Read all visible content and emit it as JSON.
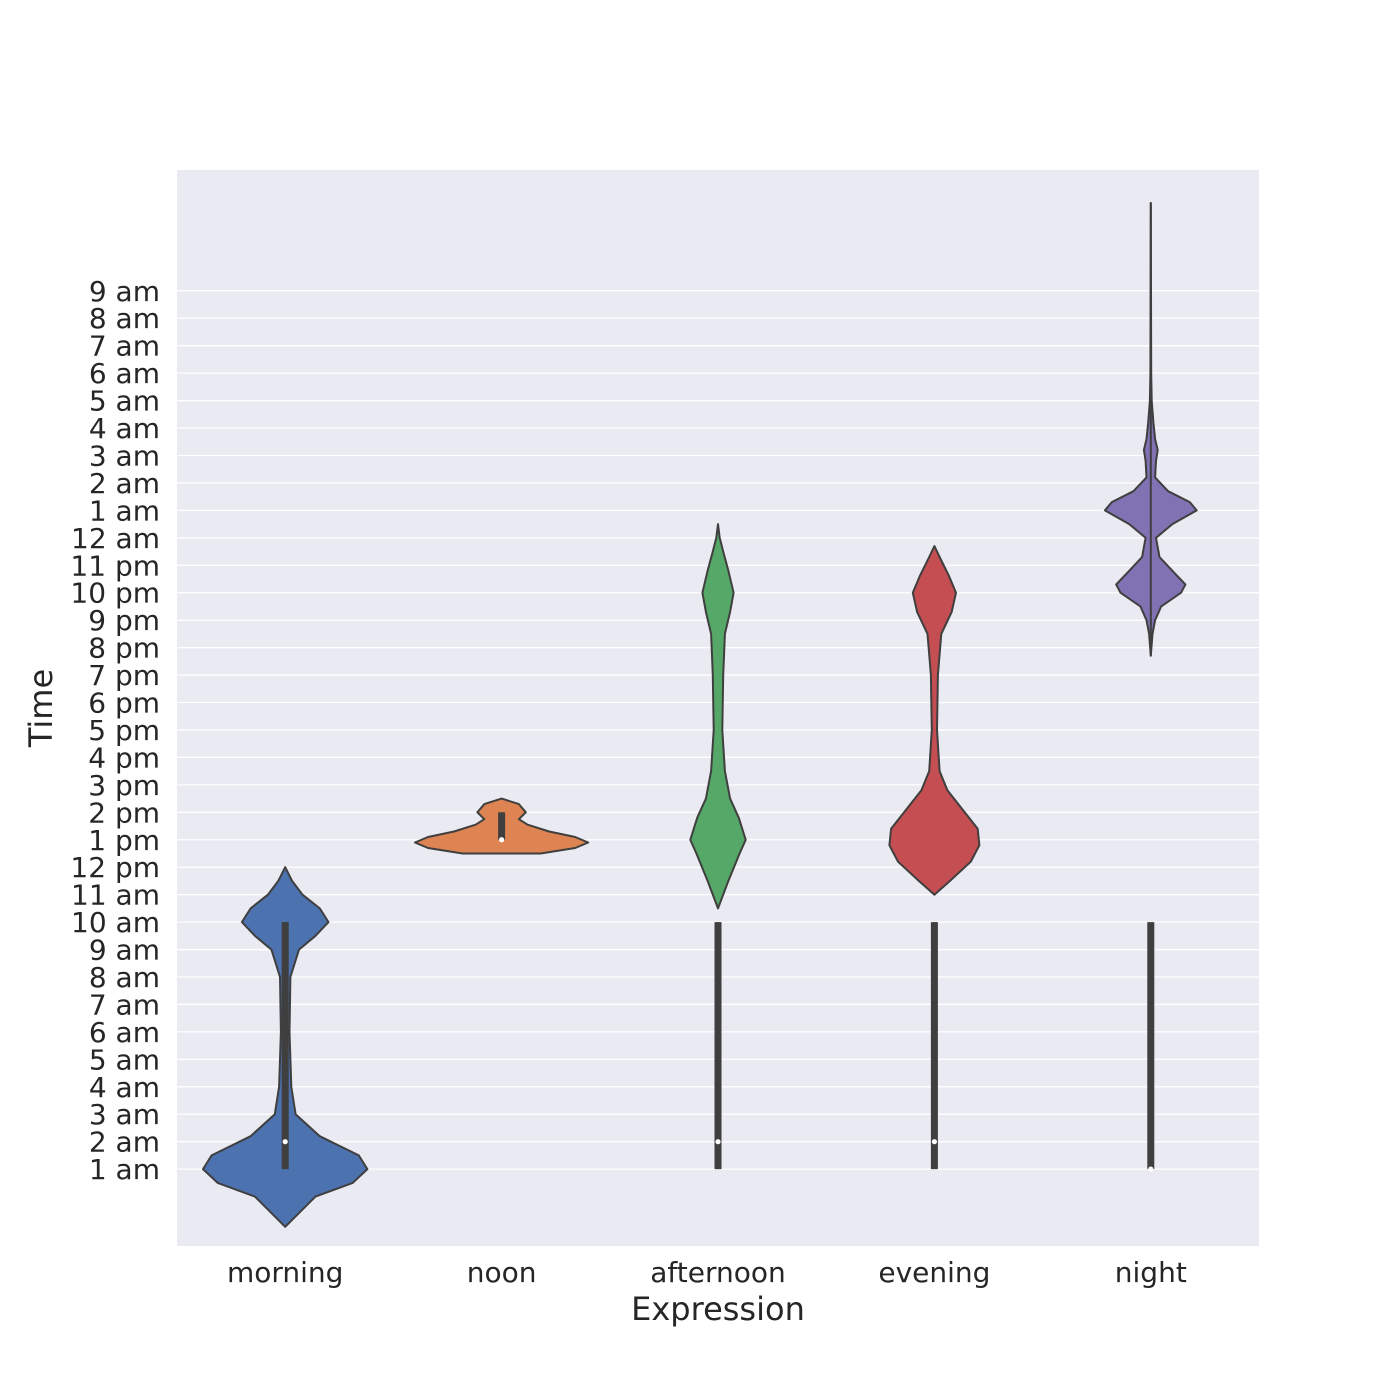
{
  "chart_data": {
    "type": "violin",
    "title": "",
    "xlabel": "Expression",
    "ylabel": "Time",
    "grid": true,
    "legend": "none",
    "plot_background": "#EAEAF2",
    "categories": [
      "morning",
      "noon",
      "afternoon",
      "evening",
      "night"
    ],
    "y_tick_labels": [
      "1 am",
      "2 am",
      "3 am",
      "4 am",
      "5 am",
      "6 am",
      "7 am",
      "8 am",
      "9 am",
      "10 am",
      "11 am",
      "12 pm",
      "1 pm",
      "2 pm",
      "3 pm",
      "4 pm",
      "5 pm",
      "6 pm",
      "7 pm",
      "8 pm",
      "9 pm",
      "10 pm",
      "11 pm",
      "12 am",
      "1 am",
      "2 am",
      "3 am",
      "4 am",
      "5 am",
      "6 am",
      "7 am",
      "8 am",
      "9 am"
    ],
    "y_tick_values": [
      1,
      2,
      3,
      4,
      5,
      6,
      7,
      8,
      9,
      10,
      11,
      12,
      13,
      14,
      15,
      16,
      17,
      18,
      19,
      20,
      21,
      22,
      23,
      24,
      25,
      26,
      27,
      28,
      29,
      30,
      31,
      32,
      33
    ],
    "ylim": [
      -1.8,
      37.4
    ],
    "series": [
      {
        "color": "#4C72B0",
        "whisker": [
          1,
          10
        ],
        "box": [
          1,
          10
        ],
        "median": 2,
        "density": [
          [
            -1.1,
            0
          ],
          [
            0,
            0.35
          ],
          [
            0.5,
            0.78
          ],
          [
            1,
            0.95
          ],
          [
            1.5,
            0.85
          ],
          [
            2.2,
            0.4
          ],
          [
            3,
            0.12
          ],
          [
            4,
            0.07
          ],
          [
            6,
            0.05
          ],
          [
            8,
            0.06
          ],
          [
            9,
            0.16
          ],
          [
            9.5,
            0.35
          ],
          [
            10,
            0.5
          ],
          [
            10.5,
            0.4
          ],
          [
            11,
            0.2
          ],
          [
            11.5,
            0.08
          ],
          [
            12,
            0
          ]
        ]
      },
      {
        "color": "#DD8452",
        "whisker": [
          13,
          14
        ],
        "box": [
          13,
          14
        ],
        "median": 13,
        "density": [
          [
            12.5,
            0.45
          ],
          [
            12.7,
            0.85
          ],
          [
            12.9,
            1
          ],
          [
            13.1,
            0.85
          ],
          [
            13.3,
            0.55
          ],
          [
            13.55,
            0.3
          ],
          [
            13.75,
            0.2
          ],
          [
            14,
            0.28
          ],
          [
            14.3,
            0.2
          ],
          [
            14.5,
            0
          ]
        ]
      },
      {
        "color": "#55A868",
        "whisker": [
          1,
          10
        ],
        "box": [
          1,
          10
        ],
        "median": 2,
        "density": [
          [
            10.5,
            0
          ],
          [
            11.5,
            0.12
          ],
          [
            12.5,
            0.25
          ],
          [
            13,
            0.32
          ],
          [
            13.8,
            0.24
          ],
          [
            14.5,
            0.14
          ],
          [
            15.5,
            0.08
          ],
          [
            17,
            0.05
          ],
          [
            19,
            0.06
          ],
          [
            20.5,
            0.08
          ],
          [
            21.3,
            0.14
          ],
          [
            22,
            0.18
          ],
          [
            22.8,
            0.12
          ],
          [
            23.5,
            0.06
          ],
          [
            24,
            0.02
          ],
          [
            24.5,
            0
          ]
        ]
      },
      {
        "color": "#C44E52",
        "whisker": [
          1,
          10
        ],
        "box": [
          1,
          10
        ],
        "median": 2,
        "density": [
          [
            11,
            0
          ],
          [
            11.5,
            0.18
          ],
          [
            12.2,
            0.42
          ],
          [
            12.8,
            0.52
          ],
          [
            13.4,
            0.5
          ],
          [
            14,
            0.35
          ],
          [
            14.8,
            0.15
          ],
          [
            15.5,
            0.06
          ],
          [
            17,
            0.03
          ],
          [
            19,
            0.04
          ],
          [
            20.5,
            0.08
          ],
          [
            21.3,
            0.2
          ],
          [
            22,
            0.25
          ],
          [
            22.6,
            0.17
          ],
          [
            23.3,
            0.06
          ],
          [
            23.7,
            0
          ]
        ]
      },
      {
        "color": "#8172B3",
        "whisker": [
          19.7,
          36.2
        ],
        "box": [
          10,
          1
        ],
        "median": 1,
        "density": [
          [
            19.7,
            0
          ],
          [
            20.5,
            0.02
          ],
          [
            21,
            0.05
          ],
          [
            21.5,
            0.12
          ],
          [
            22,
            0.35
          ],
          [
            22.3,
            0.4
          ],
          [
            22.8,
            0.25
          ],
          [
            23.3,
            0.1
          ],
          [
            24,
            0.06
          ],
          [
            24.5,
            0.25
          ],
          [
            25,
            0.53
          ],
          [
            25.3,
            0.45
          ],
          [
            25.7,
            0.2
          ],
          [
            26.2,
            0.05
          ],
          [
            26.8,
            0.06
          ],
          [
            27.2,
            0.08
          ],
          [
            27.6,
            0.05
          ],
          [
            28.2,
            0.03
          ],
          [
            29,
            0.01
          ],
          [
            30,
            0.005
          ],
          [
            36.2,
            0
          ]
        ]
      }
    ]
  }
}
